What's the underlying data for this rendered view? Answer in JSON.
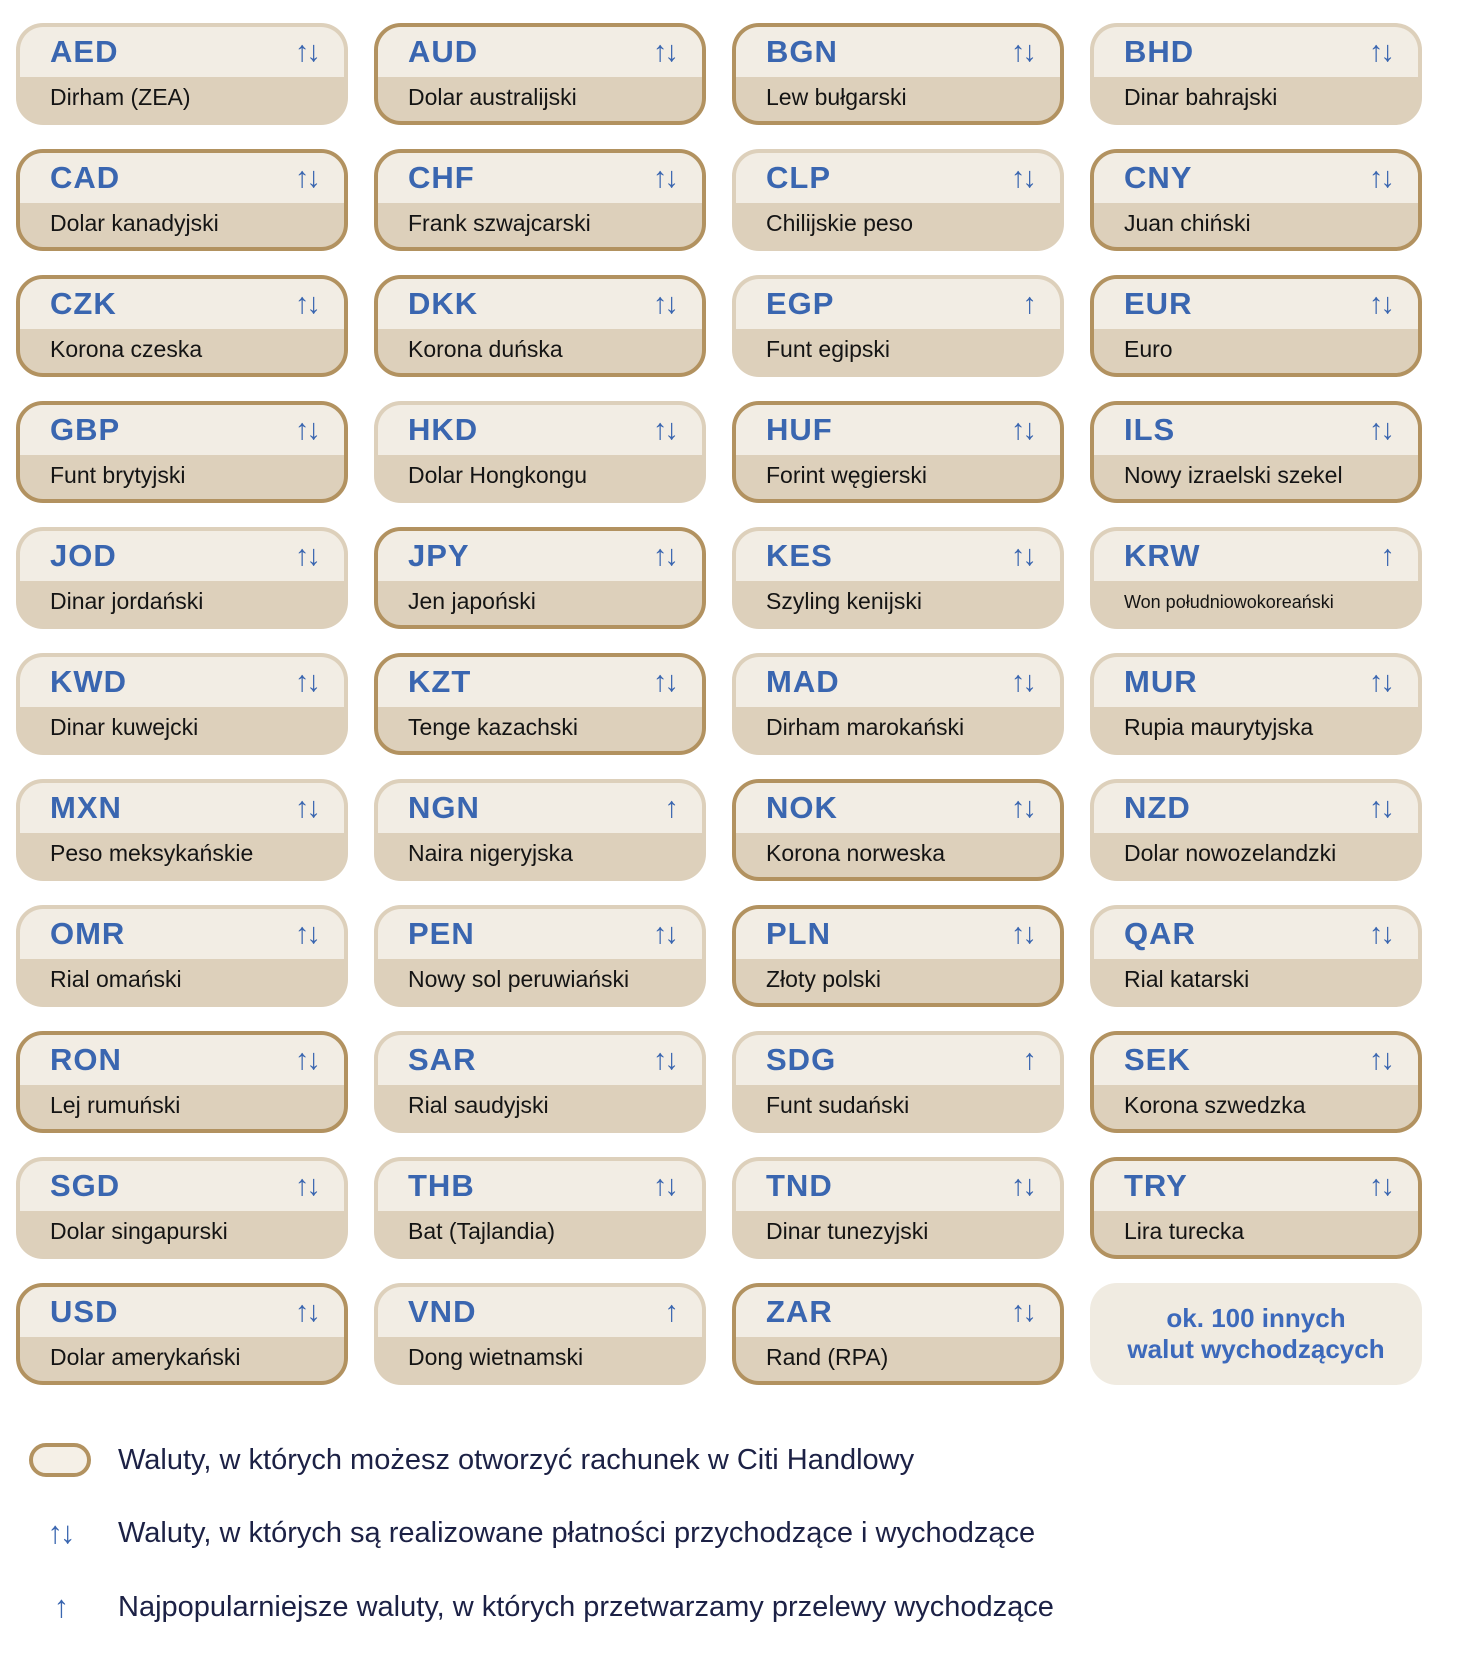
{
  "palette": {
    "card_top_bg": "#f2ede4",
    "card_bottom_bg": "#ddd0bb",
    "account_border": "#b29260",
    "accent_blue": "#3a66b0",
    "more_box_blue": "#3c69bb",
    "legend_navy": "#1c2145",
    "name_black": "#141414"
  },
  "arrows": {
    "both": "↑↓",
    "up": "↑"
  },
  "currencies": [
    {
      "code": "AED",
      "name": "Dirham (ZEA)",
      "arrows": "both",
      "account": false
    },
    {
      "code": "AUD",
      "name": "Dolar australijski",
      "arrows": "both",
      "account": true
    },
    {
      "code": "BGN",
      "name": "Lew bułgarski",
      "arrows": "both",
      "account": true
    },
    {
      "code": "BHD",
      "name": "Dinar bahrajski",
      "arrows": "both",
      "account": false
    },
    {
      "code": "CAD",
      "name": "Dolar kanadyjski",
      "arrows": "both",
      "account": true
    },
    {
      "code": "CHF",
      "name": "Frank szwajcarski",
      "arrows": "both",
      "account": true
    },
    {
      "code": "CLP",
      "name": "Chilijskie peso",
      "arrows": "both",
      "account": false
    },
    {
      "code": "CNY",
      "name": "Juan chiński",
      "arrows": "both",
      "account": true
    },
    {
      "code": "CZK",
      "name": "Korona czeska",
      "arrows": "both",
      "account": true
    },
    {
      "code": "DKK",
      "name": "Korona duńska",
      "arrows": "both",
      "account": true
    },
    {
      "code": "EGP",
      "name": "Funt egipski",
      "arrows": "up",
      "account": false
    },
    {
      "code": "EUR",
      "name": "Euro",
      "arrows": "both",
      "account": true
    },
    {
      "code": "GBP",
      "name": "Funt brytyjski",
      "arrows": "both",
      "account": true
    },
    {
      "code": "HKD",
      "name": "Dolar Hongkongu",
      "arrows": "both",
      "account": false
    },
    {
      "code": "HUF",
      "name": "Forint węgierski",
      "arrows": "both",
      "account": true
    },
    {
      "code": "ILS",
      "name": "Nowy izraelski szekel",
      "arrows": "both",
      "account": true
    },
    {
      "code": "JOD",
      "name": "Dinar jordański",
      "arrows": "both",
      "account": false
    },
    {
      "code": "JPY",
      "name": "Jen japoński",
      "arrows": "both",
      "account": true
    },
    {
      "code": "KES",
      "name": "Szyling kenijski",
      "arrows": "both",
      "account": false
    },
    {
      "code": "KRW",
      "name": "Won południowokoreański",
      "arrows": "up",
      "account": false,
      "small": true
    },
    {
      "code": "KWD",
      "name": "Dinar kuwejcki",
      "arrows": "both",
      "account": false
    },
    {
      "code": "KZT",
      "name": "Tenge kazachski",
      "arrows": "both",
      "account": true
    },
    {
      "code": "MAD",
      "name": "Dirham marokański",
      "arrows": "both",
      "account": false
    },
    {
      "code": "MUR",
      "name": "Rupia maurytyjska",
      "arrows": "both",
      "account": false
    },
    {
      "code": "MXN",
      "name": "Peso meksykańskie",
      "arrows": "both",
      "account": false
    },
    {
      "code": "NGN",
      "name": "Naira nigeryjska",
      "arrows": "up",
      "account": false
    },
    {
      "code": "NOK",
      "name": "Korona norweska",
      "arrows": "both",
      "account": true
    },
    {
      "code": "NZD",
      "name": "Dolar nowozelandzki",
      "arrows": "both",
      "account": false
    },
    {
      "code": "OMR",
      "name": "Rial omański",
      "arrows": "both",
      "account": false
    },
    {
      "code": "PEN",
      "name": "Nowy sol peruwiański",
      "arrows": "both",
      "account": false
    },
    {
      "code": "PLN",
      "name": "Złoty polski",
      "arrows": "both",
      "account": true
    },
    {
      "code": "QAR",
      "name": "Rial katarski",
      "arrows": "both",
      "account": false
    },
    {
      "code": "RON",
      "name": "Lej rumuński",
      "arrows": "both",
      "account": true
    },
    {
      "code": "SAR",
      "name": "Rial saudyjski",
      "arrows": "both",
      "account": false
    },
    {
      "code": "SDG",
      "name": "Funt sudański",
      "arrows": "up",
      "account": false
    },
    {
      "code": "SEK",
      "name": "Korona szwedzka",
      "arrows": "both",
      "account": true
    },
    {
      "code": "SGD",
      "name": "Dolar singapurski",
      "arrows": "both",
      "account": false
    },
    {
      "code": "THB",
      "name": "Bat (Tajlandia)",
      "arrows": "both",
      "account": false
    },
    {
      "code": "TND",
      "name": "Dinar tunezyjski",
      "arrows": "both",
      "account": false
    },
    {
      "code": "TRY",
      "name": "Lira turecka",
      "arrows": "both",
      "account": true
    },
    {
      "code": "USD",
      "name": "Dolar amerykański",
      "arrows": "both",
      "account": true
    },
    {
      "code": "VND",
      "name": "Dong wietnamski",
      "arrows": "up",
      "account": false
    },
    {
      "code": "ZAR",
      "name": "Rand (RPA)",
      "arrows": "both",
      "account": true
    }
  ],
  "more_box": {
    "line1": "ok. 100 innych",
    "line2": "walut wychodzących"
  },
  "legend": {
    "items": [
      {
        "symbol": "account-oval",
        "text": "Waluty, w których możesz otworzyć rachunek w Citi Handlowy"
      },
      {
        "symbol": "both-arrows",
        "text": "Waluty, w których są realizowane płatności przychodzące i wychodzące"
      },
      {
        "symbol": "up-arrow",
        "text": "Najpopularniejsze waluty, w których przetwarzamy przelewy wychodzące"
      }
    ]
  }
}
